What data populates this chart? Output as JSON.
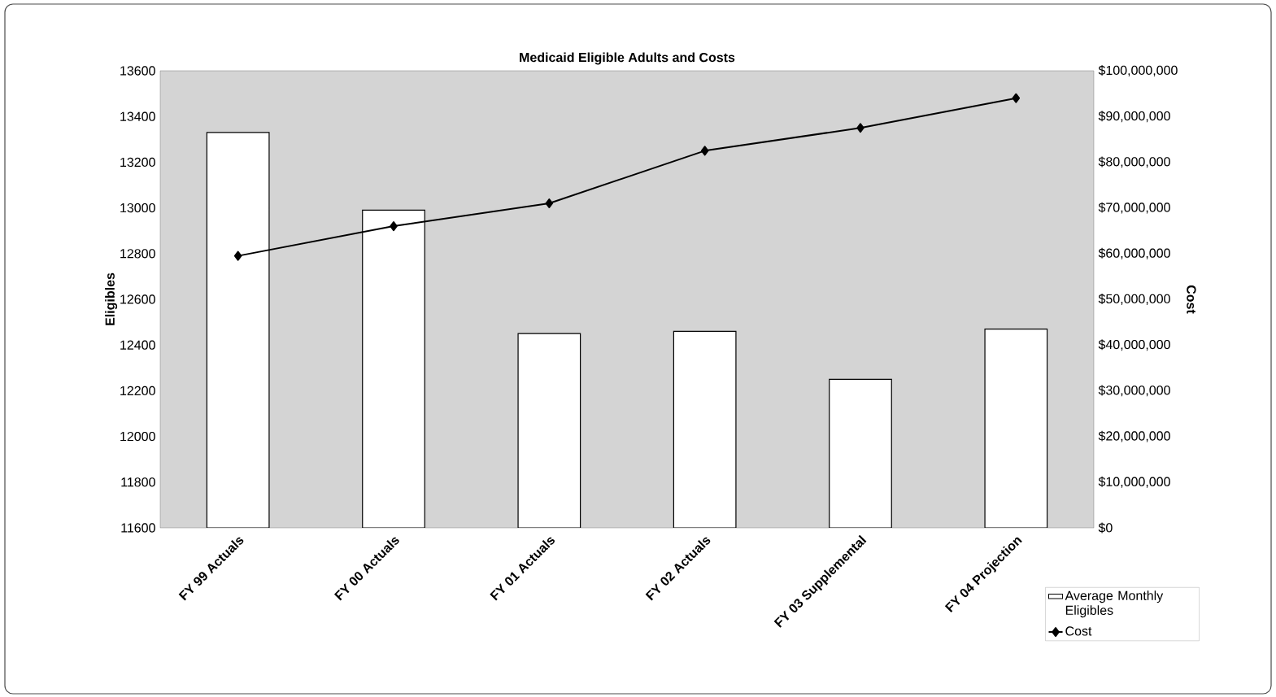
{
  "chart_data": {
    "type": "bar",
    "title": "Medicaid Eligible Adults and Costs",
    "ylabel": "Eligibles",
    "y2label": "Cost",
    "categories": [
      "FY 99 Actuals",
      "FY 00 Actuals",
      "FY 01 Actuals",
      "FY 02 Actuals",
      "FY 03 Supplemental",
      "FY 04 Projection"
    ],
    "series": [
      {
        "name": "Average Monthly Eligibles",
        "color": "#ffffff",
        "values": [
          13330,
          12990,
          12450,
          12460,
          12250,
          12470
        ]
      },
      {
        "name": "Cost",
        "type": "line",
        "axis": "y2",
        "color": "#000000",
        "values": [
          59500000,
          66000000,
          71000000,
          82500000,
          87500000,
          94000000
        ]
      }
    ],
    "ylim": [
      11600,
      13600
    ],
    "yticks": [
      11600,
      11800,
      12000,
      12200,
      12400,
      12600,
      12800,
      13000,
      13200,
      13400,
      13600
    ],
    "y2lim": [
      0,
      100000000
    ],
    "y2ticks": [
      {
        "value": 0,
        "label": "$0"
      },
      {
        "value": 10000000,
        "label": "$10,000,000"
      },
      {
        "value": 20000000,
        "label": "$20,000,000"
      },
      {
        "value": 30000000,
        "label": "$30,000,000"
      },
      {
        "value": 40000000,
        "label": "$40,000,000"
      },
      {
        "value": 50000000,
        "label": "$50,000,000"
      },
      {
        "value": 60000000,
        "label": "$60,000,000"
      },
      {
        "value": 70000000,
        "label": "$70,000,000"
      },
      {
        "value": 80000000,
        "label": "$80,000,000"
      },
      {
        "value": 90000000,
        "label": "$90,000,000"
      },
      {
        "value": 100000000,
        "label": "$100,000,000"
      }
    ],
    "marker": "diamond",
    "line_style": "solid",
    "legend": "bottom right"
  }
}
